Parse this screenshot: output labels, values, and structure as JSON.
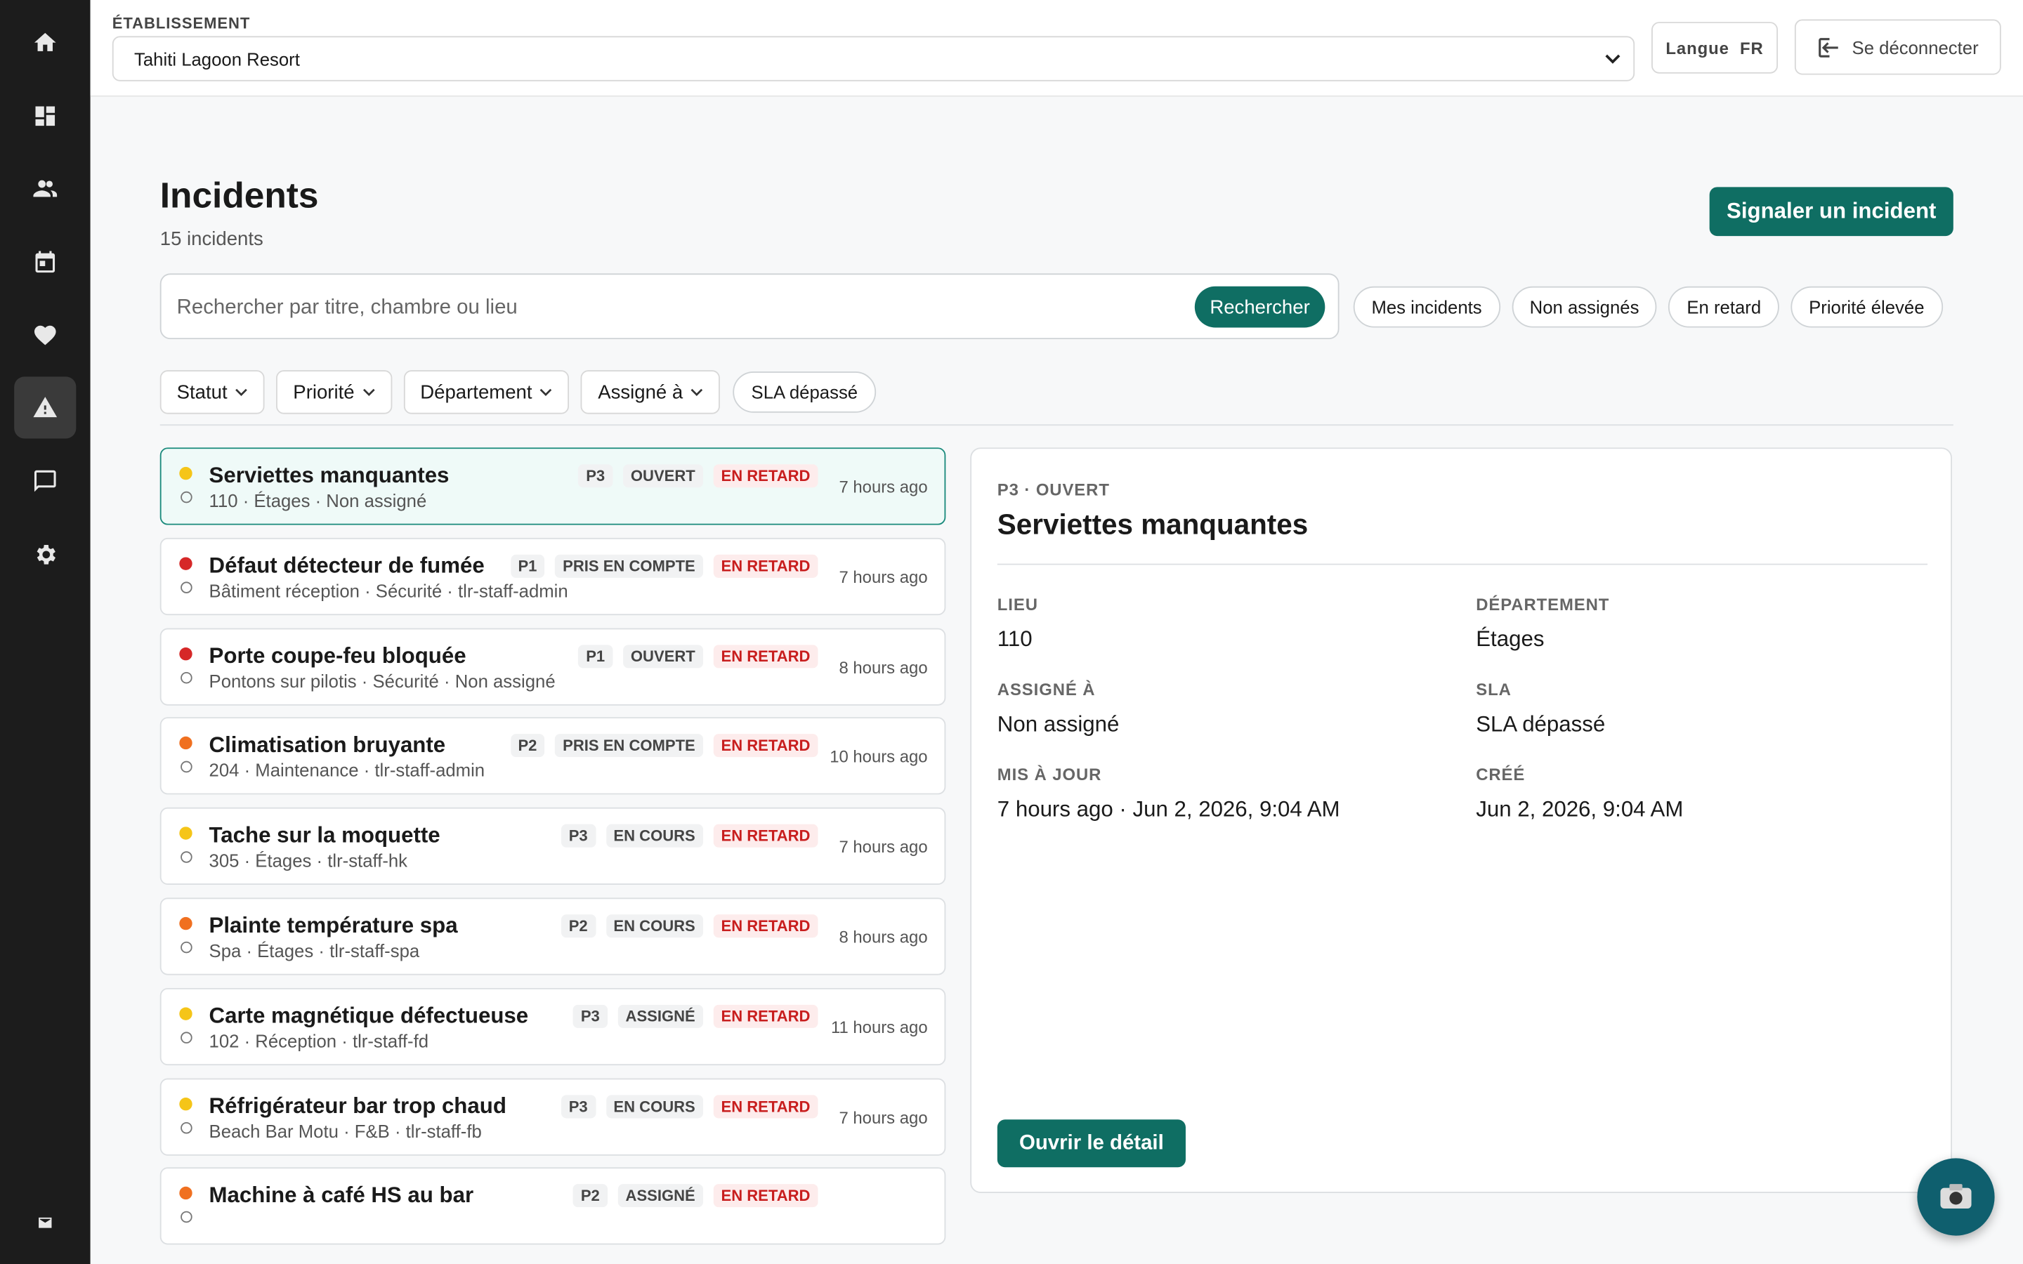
{
  "header": {
    "establishment_label": "ÉTABLISSEMENT",
    "establishment": "Tahiti Lagoon Resort",
    "language_label": "Langue",
    "language": "FR",
    "logout": "Se déconnecter"
  },
  "page": {
    "title": "Incidents",
    "count": "15 incidents",
    "report_button": "Signaler un incident"
  },
  "search": {
    "placeholder": "Rechercher par titre, chambre ou lieu",
    "button": "Rechercher"
  },
  "quick_filters": [
    "Mes incidents",
    "Non assignés",
    "En retard",
    "Priorité élevée"
  ],
  "filters": [
    "Statut",
    "Priorité",
    "Département",
    "Assigné à"
  ],
  "sla_filter": "SLA dépassé",
  "incidents": [
    {
      "title": "Serviettes manquantes",
      "meta": "110 · Étages · Non assigné",
      "priority": "P3",
      "status": "OUVERT",
      "late": "EN RETARD",
      "time": "7 hours ago",
      "color": "#f5c518"
    },
    {
      "title": "Défaut détecteur de fumée",
      "meta": "Bâtiment réception · Sécurité · tlr-staff-admin",
      "priority": "P1",
      "status": "PRIS EN COMPTE",
      "late": "EN RETARD",
      "time": "7 hours ago",
      "color": "#d62828"
    },
    {
      "title": "Porte coupe-feu bloquée",
      "meta": "Pontons sur pilotis · Sécurité · Non assigné",
      "priority": "P1",
      "status": "OUVERT",
      "late": "EN RETARD",
      "time": "8 hours ago",
      "color": "#d62828"
    },
    {
      "title": "Climatisation bruyante",
      "meta": "204 · Maintenance · tlr-staff-admin",
      "priority": "P2",
      "status": "PRIS EN COMPTE",
      "late": "EN RETARD",
      "time": "10 hours ago",
      "color": "#f07020"
    },
    {
      "title": "Tache sur la moquette",
      "meta": "305 · Étages · tlr-staff-hk",
      "priority": "P3",
      "status": "EN COURS",
      "late": "EN RETARD",
      "time": "7 hours ago",
      "color": "#f5c518"
    },
    {
      "title": "Plainte température spa",
      "meta": "Spa · Étages · tlr-staff-spa",
      "priority": "P2",
      "status": "EN COURS",
      "late": "EN RETARD",
      "time": "8 hours ago",
      "color": "#f07020"
    },
    {
      "title": "Carte magnétique défectueuse",
      "meta": "102 · Réception · tlr-staff-fd",
      "priority": "P3",
      "status": "ASSIGNÉ",
      "late": "EN RETARD",
      "time": "11 hours ago",
      "color": "#f5c518"
    },
    {
      "title": "Réfrigérateur bar trop chaud",
      "meta": "Beach Bar Motu · F&B · tlr-staff-fb",
      "priority": "P3",
      "status": "EN COURS",
      "late": "EN RETARD",
      "time": "7 hours ago",
      "color": "#f5c518"
    },
    {
      "title": "Machine à café HS au bar",
      "meta": "",
      "priority": "P2",
      "status": "ASSIGNÉ",
      "late": "EN RETARD",
      "time": "",
      "color": "#f07020"
    }
  ],
  "detail": {
    "eyebrow": "P3 · OUVERT",
    "title": "Serviettes manquantes",
    "fields": [
      {
        "label": "LIEU",
        "value": "110"
      },
      {
        "label": "DÉPARTEMENT",
        "value": "Étages"
      },
      {
        "label": "ASSIGNÉ À",
        "value": "Non assigné"
      },
      {
        "label": "SLA",
        "value": "SLA dépassé"
      },
      {
        "label": "MIS À JOUR",
        "value": "7 hours ago · Jun 2, 2026, 9:04 AM"
      },
      {
        "label": "CRÉÉ",
        "value": "Jun 2, 2026, 9:04 AM"
      }
    ],
    "button": "Ouvrir le détail"
  }
}
